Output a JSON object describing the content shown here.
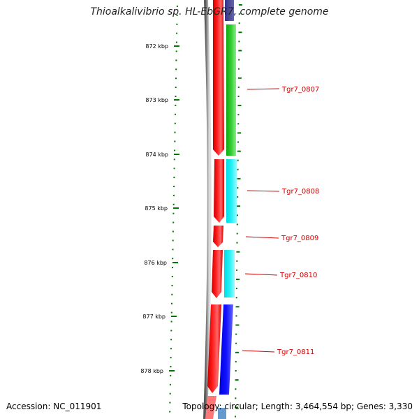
{
  "title": "Thioalkalivibrio sp. HL-EbGR7, complete genome",
  "accession": "Accession: NC_011901",
  "summary": "Topology: circular; Length: 3,464,554 bp; Genes: 3,330",
  "colors": {
    "backbone": "#808080",
    "forward_cds": "#ff0000",
    "tick": "#007700",
    "label": "#cc0000"
  },
  "ticks": [
    {
      "label": "872 kbp"
    },
    {
      "label": "873 kbp"
    },
    {
      "label": "874 kbp"
    },
    {
      "label": "875 kbp"
    },
    {
      "label": "876 kbp"
    },
    {
      "label": "877 kbp"
    },
    {
      "label": "878 kbp"
    }
  ],
  "genes": [
    {
      "label": "Tgr7_0807",
      "color": "#22bb22"
    },
    {
      "label": "Tgr7_0808",
      "color": "#00e5ee"
    },
    {
      "label": "Tgr7_0809",
      "color": ""
    },
    {
      "label": "Tgr7_0810",
      "color": "#00e5ee"
    },
    {
      "label": "Tgr7_0811",
      "color": "#0000ee"
    }
  ]
}
